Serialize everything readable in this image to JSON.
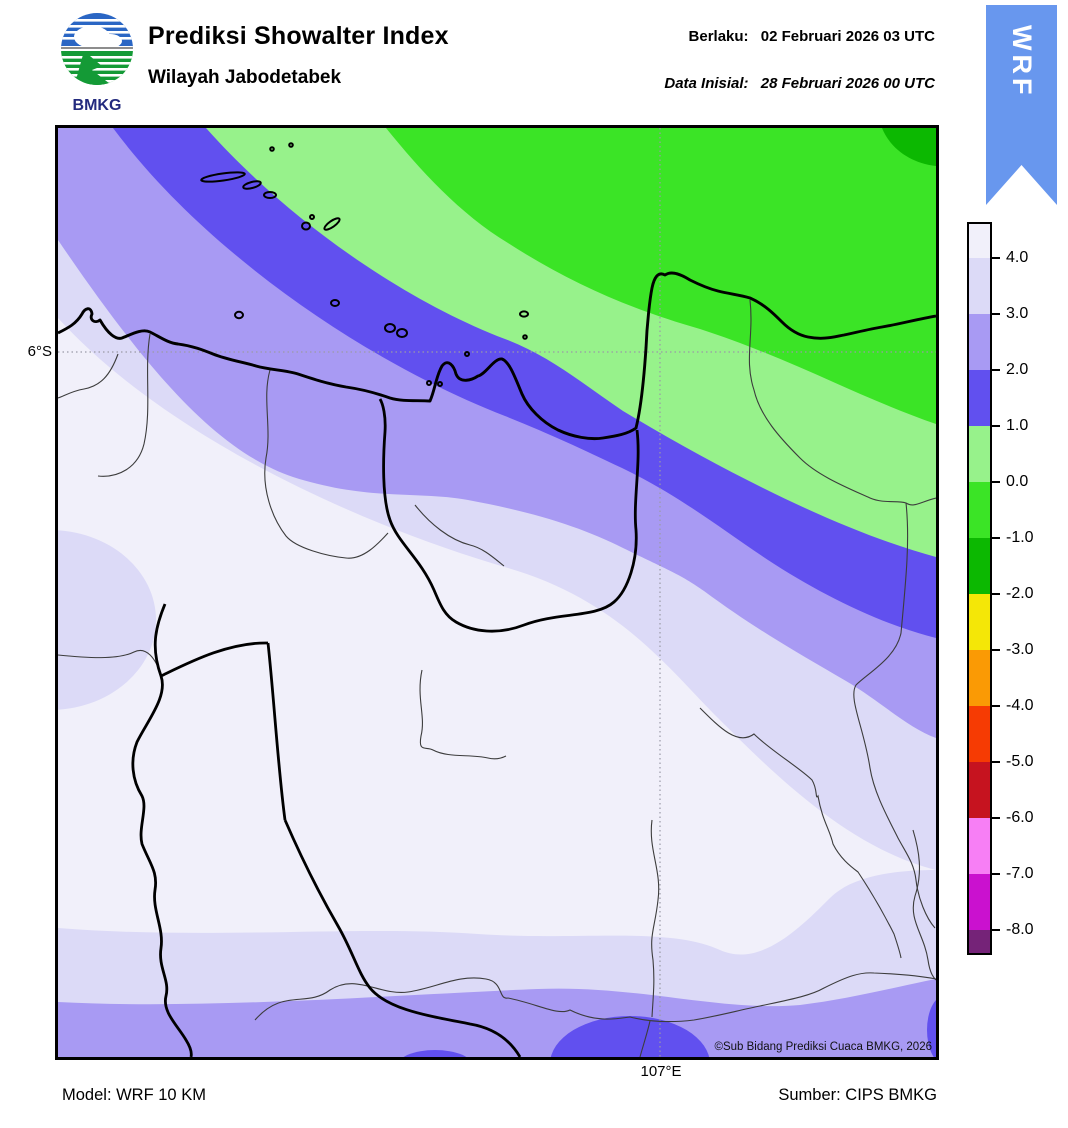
{
  "palette": {
    "pale": "#f1f0fa",
    "lavender": "#dcdaf7",
    "purple": "#a89af3",
    "blue": "#6150ef",
    "light_green": "#97f28b",
    "bright_green": "#3be426",
    "green": "#0cb801",
    "yellow": "#f4e707",
    "orange": "#fa9a05",
    "orange_red": "#f63b03",
    "dark_red": "#c6131f",
    "pink": "#f77ff5",
    "magenta": "#ca11cf",
    "dark_purple": "#752378",
    "ribbon_blue": "#6897ee",
    "logo_blue": "#2a66c4",
    "logo_green": "#149a36",
    "logo_text_navy": "#232a7e"
  },
  "header": {
    "logo_text": "BMKG",
    "title": "Prediksi Showalter Index",
    "subtitle": "Wilayah Jabodetabek",
    "valid_label": "Berlaku:",
    "valid_value": "02 Februari 2026 03 UTC",
    "initial_label": "Data Inisial:",
    "initial_value": "28 Februari 2026 00 UTC",
    "ribbon_label": "WRF"
  },
  "map": {
    "lat_tick_label": "6°S",
    "lon_tick_label": "107°E",
    "copyright": "©Sub Bidang Prediksi Cuaca BMKG, 2026"
  },
  "colorbar": {
    "tick_labels": [
      "4.0",
      "3.0",
      "2.0",
      "1.0",
      "0.0",
      "-1.0",
      "-2.0",
      "-3.0",
      "-4.0",
      "-5.0",
      "-6.0",
      "-7.0",
      "-8.0"
    ],
    "segments": [
      {
        "label": "> 4.0",
        "color_key": "pale"
      },
      {
        "label": "3.0 to 4.0",
        "color_key": "lavender"
      },
      {
        "label": "2.0 to 3.0",
        "color_key": "purple"
      },
      {
        "label": "1.0 to 2.0",
        "color_key": "blue"
      },
      {
        "label": "0.0 to 1.0",
        "color_key": "light_green"
      },
      {
        "label": "-1.0 to 0.0",
        "color_key": "bright_green"
      },
      {
        "label": "-2.0 to -1.0",
        "color_key": "green"
      },
      {
        "label": "-3.0 to -2.0",
        "color_key": "yellow"
      },
      {
        "label": "-4.0 to -3.0",
        "color_key": "orange"
      },
      {
        "label": "-5.0 to -4.0",
        "color_key": "orange_red"
      },
      {
        "label": "-6.0 to -5.0",
        "color_key": "dark_red"
      },
      {
        "label": "-7.0 to -6.0",
        "color_key": "pink"
      },
      {
        "label": "-8.0 to -7.0",
        "color_key": "magenta"
      },
      {
        "label": "< -8.0",
        "color_key": "dark_purple"
      }
    ]
  },
  "footer": {
    "model": "Model: WRF 10 KM",
    "source": "Sumber: CIPS BMKG"
  },
  "chart_data": {
    "type": "heatmap",
    "title": "Prediksi Showalter Index",
    "region": "Wilayah Jabodetabek",
    "valid_time": "02 Februari 2026 03 UTC",
    "initial_time": "28 Februari 2026 00 UTC",
    "model": "WRF 10 KM",
    "source": "CIPS BMKG",
    "colorbar_tick_values": [
      4.0,
      3.0,
      2.0,
      1.0,
      0.0,
      -1.0,
      -2.0,
      -3.0,
      -4.0,
      -5.0,
      -6.0,
      -7.0,
      -8.0
    ],
    "gridlines": {
      "latitude": "6°S",
      "longitude": "107°E"
    },
    "bands_visible_on_map": [
      {
        "showalter_range": "-2 to -1",
        "color_key": "green",
        "location": "far northeast corner (sea)"
      },
      {
        "showalter_range": "-1 to 0",
        "color_key": "bright_green",
        "location": "large northeast sea area"
      },
      {
        "showalter_range": "0 to 1",
        "color_key": "light_green",
        "location": "diagonal band along the north coast"
      },
      {
        "showalter_range": "1 to 2",
        "color_key": "blue",
        "location": "diagonal band over Jakarta Bay / coast, small spots on south edge"
      },
      {
        "showalter_range": "2 to 3",
        "color_key": "purple",
        "location": "diagonal band inland of coast, band along south edge, NW corner"
      },
      {
        "showalter_range": "3 to 4",
        "color_key": "lavender",
        "location": "transition band mid-map, west-edge blob, band above south edge"
      },
      {
        "showalter_range": "> 4",
        "color_key": "pale",
        "location": "most of inland Jabodetabek (center and south)"
      }
    ]
  }
}
